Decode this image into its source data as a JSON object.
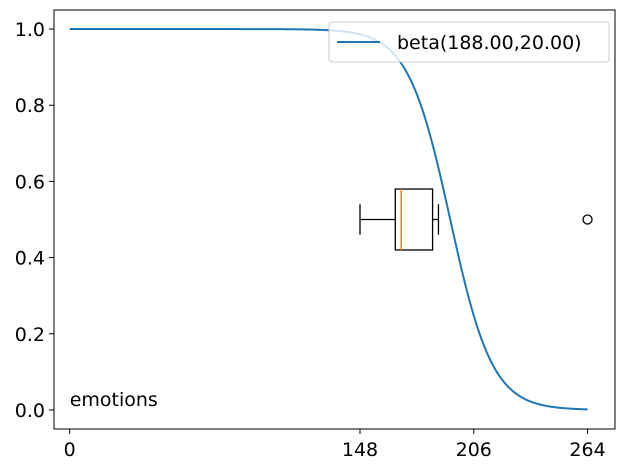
{
  "chart_data": {
    "type": "line",
    "title": "",
    "xlabel": "",
    "ylabel": "",
    "xlim": [
      -8,
      278
    ],
    "ylim": [
      -0.05,
      1.05
    ],
    "xticks": [
      0,
      148,
      206,
      264
    ],
    "yticks": [
      0.0,
      0.2,
      0.4,
      0.6,
      0.8,
      1.0
    ],
    "xtick_labels": [
      "0",
      "148",
      "206",
      "264"
    ],
    "ytick_labels": [
      "0.0",
      "0.2",
      "0.4",
      "0.6",
      "0.8",
      "1.0"
    ],
    "grid": false,
    "legend_position": "top-right",
    "series": [
      {
        "name": "beta(188.00,20.00)",
        "kind": "survival-curve",
        "center": 194,
        "scale": 10.8,
        "x_start": 0,
        "x_end": 264,
        "color": "#1f77b4"
      }
    ],
    "boxplot": {
      "orientation": "horizontal",
      "y_position": 0.5,
      "box_height": 0.16,
      "whisker_low": 148,
      "q1": 166,
      "median": 169,
      "q3": 185,
      "whisker_high": 188,
      "outliers": [
        264
      ],
      "box_color": "#000000",
      "median_color": "#ff7f0e"
    },
    "annotation": {
      "text": "emotions",
      "x": 0,
      "y": 0.01
    }
  }
}
